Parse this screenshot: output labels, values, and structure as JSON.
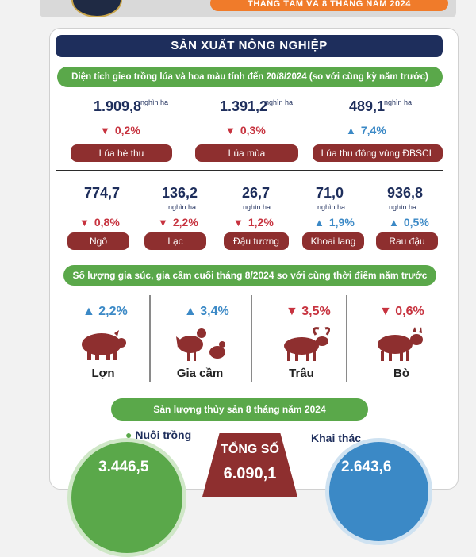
{
  "header": {
    "banner_text": "THÁNG TÁM VÀ 8 THÁNG NĂM 2024"
  },
  "section_title": "SẢN XUẤT NÔNG NGHIỆP",
  "area": {
    "subtitle": "Diện tích gieo trồng lúa và hoa màu tính đến 20/8/2024 (so với cùng kỳ năm trước)",
    "rice": [
      {
        "value": "1.909,8",
        "unit": "nghìn ha",
        "change": "0,2%",
        "direction": "down",
        "label": "Lúa hè thu"
      },
      {
        "value": "1.391,2",
        "unit": "nghìn ha",
        "change": "0,3%",
        "direction": "down",
        "label": "Lúa mùa"
      },
      {
        "value": "489,1",
        "unit": "nghìn ha",
        "change": "7,4%",
        "direction": "up",
        "label": "Lúa thu đông vùng ĐBSCL"
      }
    ],
    "crops": [
      {
        "value": "774,7",
        "unit": "nghìn ha",
        "change": "0,8%",
        "direction": "down",
        "label": "Ngô"
      },
      {
        "value": "136,2",
        "unit": "nghìn ha",
        "change": "2,2%",
        "direction": "down",
        "label": "Lạc"
      },
      {
        "value": "26,7",
        "unit": "nghìn ha",
        "change": "1,2%",
        "direction": "down",
        "label": "Đậu tương"
      },
      {
        "value": "71,0",
        "unit": "nghìn ha",
        "change": "1,9%",
        "direction": "up",
        "label": "Khoai lang"
      },
      {
        "value": "936,8",
        "unit": "nghìn ha",
        "change": "0,5%",
        "direction": "up",
        "label": "Rau đậu"
      }
    ]
  },
  "livestock": {
    "subtitle": "Số lượng gia súc, gia cầm cuối tháng 8/2024 so với cùng thời điểm năm trước",
    "items": [
      {
        "name": "Lợn",
        "change": "2,2%",
        "direction": "up",
        "icon": "pig-icon"
      },
      {
        "name": "Gia cầm",
        "change": "3,4%",
        "direction": "up",
        "icon": "poultry-icon"
      },
      {
        "name": "Trâu",
        "change": "3,5%",
        "direction": "down",
        "icon": "buffalo-icon"
      },
      {
        "name": "Bò",
        "change": "0,6%",
        "direction": "down",
        "icon": "cow-icon"
      }
    ]
  },
  "fishery": {
    "subtitle": "Sản lượng thủy sản 8 tháng năm 2024",
    "farming_label": "Nuôi trồng",
    "farming_value": "3.446,5",
    "total_label": "TỔNG SỐ",
    "total_value": "6.090,1",
    "catch_label": "Khai thác",
    "catch_value": "2.643,6"
  },
  "colors": {
    "navy": "#1e2e5c",
    "green": "#5aa84a",
    "maroon": "#8e2f2f",
    "down_red": "#c7333f",
    "up_blue": "#3b89c6"
  }
}
